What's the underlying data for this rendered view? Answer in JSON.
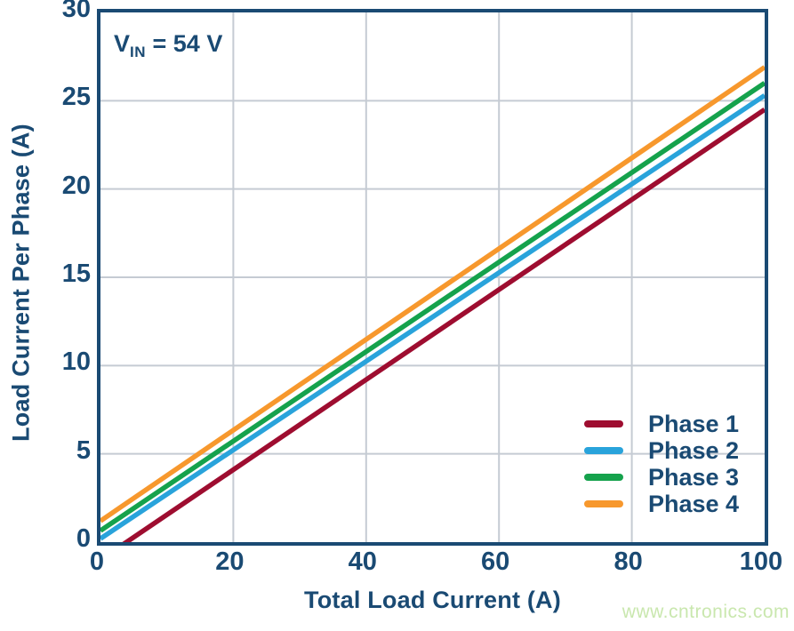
{
  "colors": {
    "axis_navy": "#1a4a73",
    "grid": "#c5cbd3",
    "plot_background": "#ffffff",
    "watermark_green": "#c9e7ae"
  },
  "annotation": {
    "variable": "V",
    "subscript": "IN",
    "rest": " = 54 V"
  },
  "watermark": "www.cntronics.com",
  "chart_data": {
    "type": "line",
    "title": "",
    "xlabel": "Total Load Current (A)",
    "ylabel": "Load Current Per Phase (A)",
    "xlim": [
      0,
      100
    ],
    "ylim": [
      0,
      30
    ],
    "xticks": [
      0,
      20,
      40,
      60,
      80,
      100
    ],
    "yticks": [
      0,
      5,
      10,
      15,
      20,
      25,
      30
    ],
    "grid": true,
    "legend_position": "inside-bottom-right",
    "series": [
      {
        "name": "Phase 1",
        "color": "#9e0d30",
        "x": [
          0,
          100
        ],
        "y": [
          -1.0,
          24.5
        ]
      },
      {
        "name": "Phase 2",
        "color": "#29a3db",
        "x": [
          0,
          100
        ],
        "y": [
          0.2,
          25.3
        ]
      },
      {
        "name": "Phase 3",
        "color": "#15a24c",
        "x": [
          0,
          100
        ],
        "y": [
          0.65,
          26.0
        ]
      },
      {
        "name": "Phase 4",
        "color": "#f7982d",
        "x": [
          0,
          100
        ],
        "y": [
          1.2,
          26.9
        ]
      }
    ]
  }
}
